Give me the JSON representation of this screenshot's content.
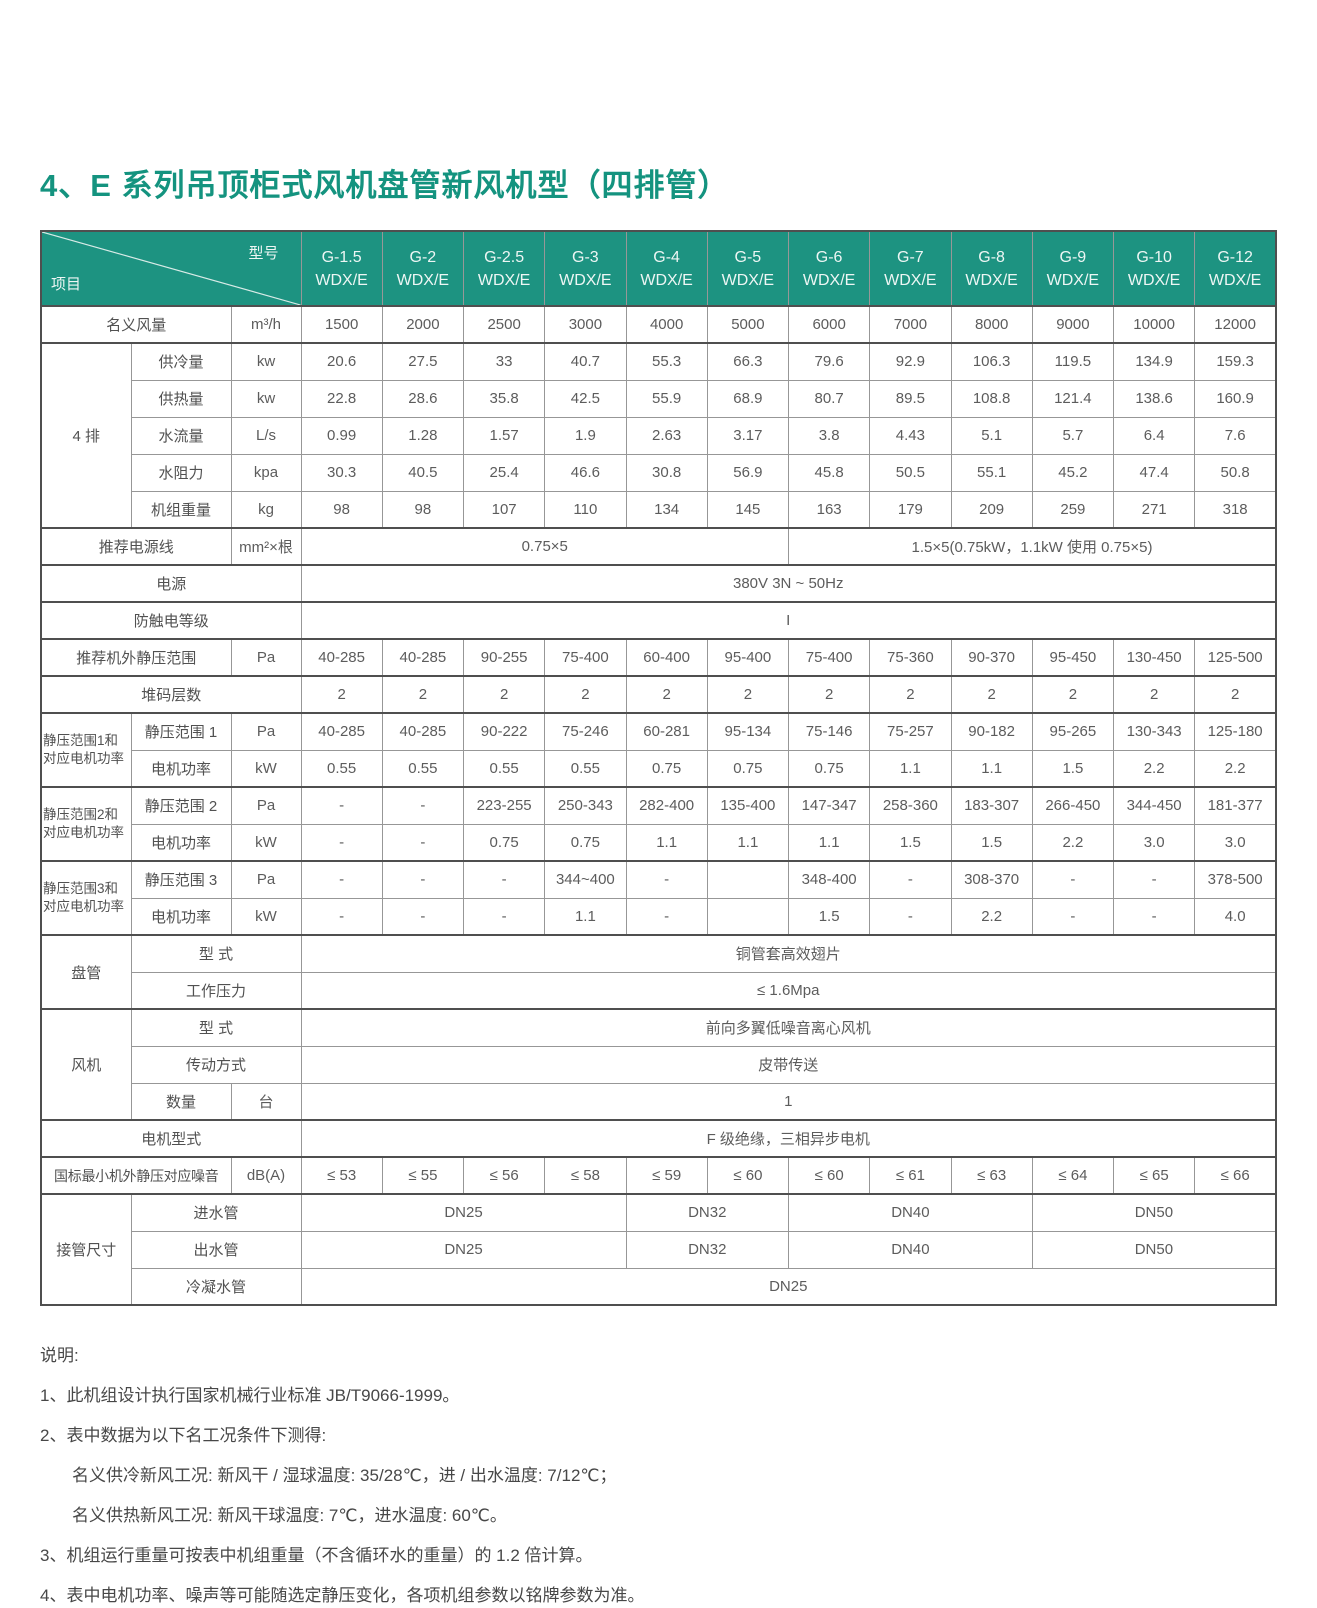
{
  "title": "4、E 系列吊顶柜式风机盘管新风机型（四排管）",
  "colors": {
    "header_teal": "#1D9381",
    "title_teal": "#14937F",
    "grid_line": "#979797",
    "heavy_line": "#4F4F4F",
    "text_gray": "#5C5C5C"
  },
  "table": {
    "corner": {
      "top_right": "型号",
      "bottom_left": "项目"
    },
    "model_series": "WDX/E",
    "models": [
      "G-1.5",
      "G-2",
      "G-2.5",
      "G-3",
      "G-4",
      "G-5",
      "G-6",
      "G-7",
      "G-8",
      "G-9",
      "G-10",
      "G-12"
    ],
    "rows": [
      {
        "thick": false,
        "cells": [
          {
            "t": "名义风量",
            "cs": 2,
            "c": "lbl"
          },
          {
            "t": "m³/h",
            "c": "unit"
          },
          {
            "t": "1500"
          },
          {
            "t": "2000"
          },
          {
            "t": "2500"
          },
          {
            "t": "3000"
          },
          {
            "t": "4000"
          },
          {
            "t": "5000"
          },
          {
            "t": "6000"
          },
          {
            "t": "7000"
          },
          {
            "t": "8000"
          },
          {
            "t": "9000"
          },
          {
            "t": "10000"
          },
          {
            "t": "12000"
          }
        ]
      },
      {
        "thick": true,
        "cells": [
          {
            "t": "4 排",
            "rs": 5,
            "c": "grp"
          },
          {
            "t": "供冷量",
            "c": "lbl"
          },
          {
            "t": "kw",
            "c": "unit"
          },
          {
            "t": "20.6"
          },
          {
            "t": "27.5"
          },
          {
            "t": "33"
          },
          {
            "t": "40.7"
          },
          {
            "t": "55.3"
          },
          {
            "t": "66.3"
          },
          {
            "t": "79.6"
          },
          {
            "t": "92.9"
          },
          {
            "t": "106.3"
          },
          {
            "t": "119.5"
          },
          {
            "t": "134.9"
          },
          {
            "t": "159.3"
          }
        ]
      },
      {
        "thick": false,
        "cells": [
          {
            "t": "供热量",
            "c": "lbl"
          },
          {
            "t": "kw",
            "c": "unit"
          },
          {
            "t": "22.8"
          },
          {
            "t": "28.6"
          },
          {
            "t": "35.8"
          },
          {
            "t": "42.5"
          },
          {
            "t": "55.9"
          },
          {
            "t": "68.9"
          },
          {
            "t": "80.7"
          },
          {
            "t": "89.5"
          },
          {
            "t": "108.8"
          },
          {
            "t": "121.4"
          },
          {
            "t": "138.6"
          },
          {
            "t": "160.9"
          }
        ]
      },
      {
        "thick": false,
        "cells": [
          {
            "t": "水流量",
            "c": "lbl"
          },
          {
            "t": "L/s",
            "c": "unit"
          },
          {
            "t": "0.99"
          },
          {
            "t": "1.28"
          },
          {
            "t": "1.57"
          },
          {
            "t": "1.9"
          },
          {
            "t": "2.63"
          },
          {
            "t": "3.17"
          },
          {
            "t": "3.8"
          },
          {
            "t": "4.43"
          },
          {
            "t": "5.1"
          },
          {
            "t": "5.7"
          },
          {
            "t": "6.4"
          },
          {
            "t": "7.6"
          }
        ]
      },
      {
        "thick": false,
        "cells": [
          {
            "t": "水阻力",
            "c": "lbl"
          },
          {
            "t": "kpa",
            "c": "unit"
          },
          {
            "t": "30.3"
          },
          {
            "t": "40.5"
          },
          {
            "t": "25.4"
          },
          {
            "t": "46.6"
          },
          {
            "t": "30.8"
          },
          {
            "t": "56.9"
          },
          {
            "t": "45.8"
          },
          {
            "t": "50.5"
          },
          {
            "t": "55.1"
          },
          {
            "t": "45.2"
          },
          {
            "t": "47.4"
          },
          {
            "t": "50.8"
          }
        ]
      },
      {
        "thick": false,
        "cells": [
          {
            "t": "机组重量",
            "c": "lbl"
          },
          {
            "t": "kg",
            "c": "unit"
          },
          {
            "t": "98"
          },
          {
            "t": "98"
          },
          {
            "t": "107"
          },
          {
            "t": "110"
          },
          {
            "t": "134"
          },
          {
            "t": "145"
          },
          {
            "t": "163"
          },
          {
            "t": "179"
          },
          {
            "t": "209"
          },
          {
            "t": "259"
          },
          {
            "t": "271"
          },
          {
            "t": "318"
          }
        ]
      },
      {
        "thick": true,
        "cells": [
          {
            "t": "推荐电源线",
            "cs": 2,
            "c": "lbl"
          },
          {
            "t": "mm²×根",
            "c": "unit"
          },
          {
            "t": "0.75×5",
            "cs": 6
          },
          {
            "t": "1.5×5(0.75kW，1.1kW 使用 0.75×5)",
            "cs": 6
          }
        ]
      },
      {
        "thick": true,
        "cells": [
          {
            "t": "电源",
            "cs": 3,
            "c": "lbl"
          },
          {
            "t": "380V 3N ~ 50Hz",
            "cs": 12
          }
        ]
      },
      {
        "thick": true,
        "cells": [
          {
            "t": "防触电等级",
            "cs": 3,
            "c": "lbl"
          },
          {
            "t": "I",
            "cs": 12
          }
        ]
      },
      {
        "thick": true,
        "cells": [
          {
            "t": "推荐机外静压范围",
            "cs": 2,
            "c": "lbl"
          },
          {
            "t": "Pa",
            "c": "unit"
          },
          {
            "t": "40-285"
          },
          {
            "t": "40-285"
          },
          {
            "t": "90-255"
          },
          {
            "t": "75-400"
          },
          {
            "t": "60-400"
          },
          {
            "t": "95-400"
          },
          {
            "t": "75-400"
          },
          {
            "t": "75-360"
          },
          {
            "t": "90-370"
          },
          {
            "t": "95-450"
          },
          {
            "t": "130-450"
          },
          {
            "t": "125-500"
          }
        ]
      },
      {
        "thick": true,
        "cells": [
          {
            "t": "堆码层数",
            "cs": 3,
            "c": "lbl"
          },
          {
            "t": "2"
          },
          {
            "t": "2"
          },
          {
            "t": "2"
          },
          {
            "t": "2"
          },
          {
            "t": "2"
          },
          {
            "t": "2"
          },
          {
            "t": "2"
          },
          {
            "t": "2"
          },
          {
            "t": "2"
          },
          {
            "t": "2"
          },
          {
            "t": "2"
          },
          {
            "t": "2"
          }
        ]
      },
      {
        "thick": true,
        "cells": [
          {
            "t": "静压范围1和\n对应电机功率",
            "rs": 2,
            "c": "grp grpsm"
          },
          {
            "t": "静压范围 1",
            "c": "lbl"
          },
          {
            "t": "Pa",
            "c": "unit"
          },
          {
            "t": "40-285"
          },
          {
            "t": "40-285"
          },
          {
            "t": "90-222"
          },
          {
            "t": "75-246"
          },
          {
            "t": "60-281"
          },
          {
            "t": "95-134"
          },
          {
            "t": "75-146"
          },
          {
            "t": "75-257"
          },
          {
            "t": "90-182"
          },
          {
            "t": "95-265"
          },
          {
            "t": "130-343"
          },
          {
            "t": "125-180"
          }
        ]
      },
      {
        "thick": false,
        "cells": [
          {
            "t": "电机功率",
            "c": "lbl"
          },
          {
            "t": "kW",
            "c": "unit"
          },
          {
            "t": "0.55"
          },
          {
            "t": "0.55"
          },
          {
            "t": "0.55"
          },
          {
            "t": "0.55"
          },
          {
            "t": "0.75"
          },
          {
            "t": "0.75"
          },
          {
            "t": "0.75"
          },
          {
            "t": "1.1"
          },
          {
            "t": "1.1"
          },
          {
            "t": "1.5"
          },
          {
            "t": "2.2"
          },
          {
            "t": "2.2"
          }
        ]
      },
      {
        "thick": true,
        "cells": [
          {
            "t": "静压范围2和\n对应电机功率",
            "rs": 2,
            "c": "grp grpsm"
          },
          {
            "t": "静压范围 2",
            "c": "lbl"
          },
          {
            "t": "Pa",
            "c": "unit"
          },
          {
            "t": "-"
          },
          {
            "t": "-"
          },
          {
            "t": "223-255"
          },
          {
            "t": "250-343"
          },
          {
            "t": "282-400"
          },
          {
            "t": "135-400"
          },
          {
            "t": "147-347"
          },
          {
            "t": "258-360"
          },
          {
            "t": "183-307"
          },
          {
            "t": "266-450"
          },
          {
            "t": "344-450"
          },
          {
            "t": "181-377"
          }
        ]
      },
      {
        "thick": false,
        "cells": [
          {
            "t": "电机功率",
            "c": "lbl"
          },
          {
            "t": "kW",
            "c": "unit"
          },
          {
            "t": "-"
          },
          {
            "t": "-"
          },
          {
            "t": "0.75"
          },
          {
            "t": "0.75"
          },
          {
            "t": "1.1"
          },
          {
            "t": "1.1"
          },
          {
            "t": "1.1"
          },
          {
            "t": "1.5"
          },
          {
            "t": "1.5"
          },
          {
            "t": "2.2"
          },
          {
            "t": "3.0"
          },
          {
            "t": "3.0"
          }
        ]
      },
      {
        "thick": true,
        "cells": [
          {
            "t": "静压范围3和\n对应电机功率",
            "rs": 2,
            "c": "grp grpsm"
          },
          {
            "t": "静压范围 3",
            "c": "lbl"
          },
          {
            "t": "Pa",
            "c": "unit"
          },
          {
            "t": "-"
          },
          {
            "t": "-"
          },
          {
            "t": "-"
          },
          {
            "t": "344~400"
          },
          {
            "t": "-"
          },
          {
            "t": ""
          },
          {
            "t": "348-400"
          },
          {
            "t": "-"
          },
          {
            "t": "308-370"
          },
          {
            "t": "-"
          },
          {
            "t": "-"
          },
          {
            "t": "378-500"
          }
        ]
      },
      {
        "thick": false,
        "cells": [
          {
            "t": "电机功率",
            "c": "lbl"
          },
          {
            "t": "kW",
            "c": "unit"
          },
          {
            "t": "-"
          },
          {
            "t": "-"
          },
          {
            "t": "-"
          },
          {
            "t": "1.1"
          },
          {
            "t": "-"
          },
          {
            "t": ""
          },
          {
            "t": "1.5"
          },
          {
            "t": "-"
          },
          {
            "t": "2.2"
          },
          {
            "t": "-"
          },
          {
            "t": "-"
          },
          {
            "t": "4.0"
          }
        ]
      },
      {
        "thick": true,
        "cells": [
          {
            "t": "盘管",
            "rs": 2,
            "c": "grp"
          },
          {
            "t": "型  式",
            "cs": 2,
            "c": "lbl"
          },
          {
            "t": "铜管套高效翅片",
            "cs": 12
          }
        ]
      },
      {
        "thick": false,
        "cells": [
          {
            "t": "工作压力",
            "cs": 2,
            "c": "lbl"
          },
          {
            "t": "≤ 1.6Mpa",
            "cs": 12
          }
        ]
      },
      {
        "thick": true,
        "cells": [
          {
            "t": "风机",
            "rs": 3,
            "c": "grp"
          },
          {
            "t": "型  式",
            "cs": 2,
            "c": "lbl"
          },
          {
            "t": "前向多翼低噪音离心风机",
            "cs": 12
          }
        ]
      },
      {
        "thick": false,
        "cells": [
          {
            "t": "传动方式",
            "cs": 2,
            "c": "lbl"
          },
          {
            "t": "皮带传送",
            "cs": 12
          }
        ]
      },
      {
        "thick": false,
        "cells": [
          {
            "t": "数量",
            "c": "lbl"
          },
          {
            "t": "台",
            "c": "unit"
          },
          {
            "t": "1",
            "cs": 12
          }
        ]
      },
      {
        "thick": true,
        "cells": [
          {
            "t": "电机型式",
            "cs": 3,
            "c": "lbl"
          },
          {
            "t": "F 级绝缘，三相异步电机",
            "cs": 12
          }
        ]
      },
      {
        "thick": true,
        "cells": [
          {
            "t": "国标最小机外静压对应噪音",
            "cs": 2,
            "c": "lbl lblsm"
          },
          {
            "t": "dB(A)",
            "c": "unit"
          },
          {
            "t": "≤ 53"
          },
          {
            "t": "≤ 55"
          },
          {
            "t": "≤ 56"
          },
          {
            "t": "≤ 58"
          },
          {
            "t": "≤ 59"
          },
          {
            "t": "≤ 60"
          },
          {
            "t": "≤ 60"
          },
          {
            "t": "≤ 61"
          },
          {
            "t": "≤ 63"
          },
          {
            "t": "≤ 64"
          },
          {
            "t": "≤ 65"
          },
          {
            "t": "≤ 66"
          }
        ]
      },
      {
        "thick": true,
        "cells": [
          {
            "t": "接管尺寸",
            "rs": 3,
            "c": "grp"
          },
          {
            "t": "进水管",
            "cs": 2,
            "c": "lbl"
          },
          {
            "t": "DN25",
            "cs": 4
          },
          {
            "t": "DN32",
            "cs": 2
          },
          {
            "t": "DN40",
            "cs": 3
          },
          {
            "t": "DN50",
            "cs": 3
          }
        ]
      },
      {
        "thick": false,
        "cells": [
          {
            "t": "出水管",
            "cs": 2,
            "c": "lbl"
          },
          {
            "t": "DN25",
            "cs": 4
          },
          {
            "t": "DN32",
            "cs": 2
          },
          {
            "t": "DN40",
            "cs": 3
          },
          {
            "t": "DN50",
            "cs": 3
          }
        ]
      },
      {
        "thick": false,
        "cells": [
          {
            "t": "冷凝水管",
            "cs": 2,
            "c": "lbl"
          },
          {
            "t": "DN25",
            "cs": 12
          }
        ]
      }
    ]
  },
  "notes": {
    "heading": "说明:",
    "items": [
      {
        "indent": 0,
        "text": "1、此机组设计执行国家机械行业标准 JB/T9066-1999。"
      },
      {
        "indent": 0,
        "text": "2、表中数据为以下名工况条件下测得:"
      },
      {
        "indent": 1,
        "text": "名义供冷新风工况: 新风干 / 湿球温度: 35/28℃，进 / 出水温度: 7/12℃；"
      },
      {
        "indent": 1,
        "text": "名义供热新风工况: 新风干球温度: 7℃，进水温度: 60℃。"
      },
      {
        "indent": 0,
        "text": "3、机组运行重量可按表中机组重量（不含循环水的重量）的 1.2 倍计算。"
      },
      {
        "indent": 0,
        "text": "4、表中电机功率、噪声等可能随选定静压变化，各项机组参数以铭牌参数为准。"
      }
    ]
  }
}
